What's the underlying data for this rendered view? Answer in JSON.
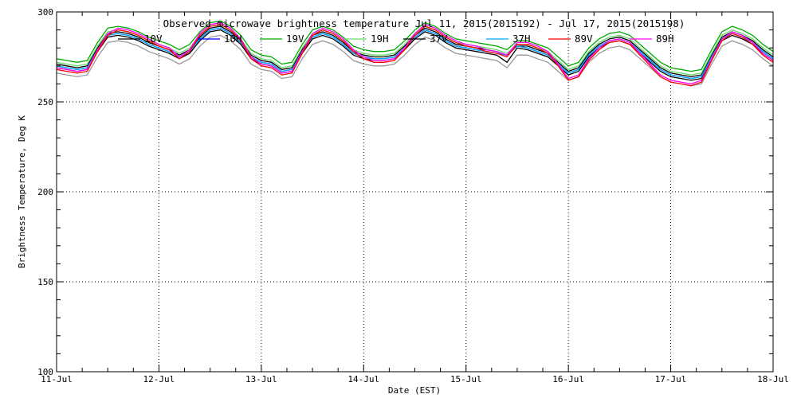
{
  "chart_data": {
    "type": "line",
    "title": "Observed microwave brightness temperature  Jul 11, 2015(2015192) - Jul 17, 2015(2015198)",
    "xlabel": "Date (EST)",
    "ylabel": "Brightness Temperature, Deg K",
    "x_tick_labels": [
      "11-Jul",
      "12-Jul",
      "13-Jul",
      "14-Jul",
      "15-Jul",
      "16-Jul",
      "17-Jul",
      "18-Jul"
    ],
    "y_ticks": [
      100,
      150,
      200,
      250,
      300
    ],
    "xlim": [
      0,
      7
    ],
    "ylim": [
      100,
      300
    ],
    "grid": true,
    "legend_position": "top",
    "x": [
      0.0,
      0.1,
      0.2,
      0.3,
      0.4,
      0.5,
      0.6,
      0.7,
      0.8,
      0.9,
      1.0,
      1.1,
      1.2,
      1.3,
      1.4,
      1.5,
      1.6,
      1.7,
      1.8,
      1.9,
      2.0,
      2.1,
      2.2,
      2.3,
      2.4,
      2.5,
      2.6,
      2.7,
      2.8,
      2.9,
      3.0,
      3.1,
      3.2,
      3.3,
      3.4,
      3.5,
      3.6,
      3.7,
      3.8,
      3.9,
      4.0,
      4.1,
      4.2,
      4.3,
      4.4,
      4.5,
      4.6,
      4.7,
      4.8,
      4.9,
      5.0,
      5.1,
      5.2,
      5.3,
      5.4,
      5.5,
      5.6,
      5.7,
      5.8,
      5.9,
      6.0,
      6.1,
      6.2,
      6.3,
      6.4,
      6.5,
      6.6,
      6.7,
      6.8,
      6.9,
      7.0
    ],
    "series": [
      {
        "name": "10V",
        "color": "#000000",
        "values": [
          271,
          270,
          269,
          270,
          280,
          288,
          289,
          288,
          286,
          283,
          281,
          279,
          276,
          279,
          286,
          291,
          292,
          289,
          284,
          276,
          273,
          272,
          268,
          269,
          279,
          287,
          289,
          287,
          283,
          278,
          276,
          275,
          275,
          276,
          281,
          287,
          291,
          289,
          285,
          282,
          281,
          280,
          279,
          278,
          276,
          281,
          281,
          279,
          277,
          272,
          267,
          269,
          277,
          282,
          285,
          286,
          284,
          279,
          274,
          269,
          266,
          265,
          264,
          265,
          276,
          286,
          289,
          287,
          284,
          279,
          275
        ]
      },
      {
        "name": "10H",
        "color": "#0000ff",
        "values": [
          270,
          269,
          268,
          269,
          279,
          287,
          288,
          287,
          285,
          282,
          280,
          278,
          275,
          278,
          285,
          290,
          291,
          288,
          283,
          275,
          272,
          271,
          267,
          268,
          278,
          286,
          288,
          286,
          282,
          277,
          275,
          274,
          274,
          275,
          280,
          286,
          290,
          288,
          284,
          281,
          280,
          279,
          278,
          277,
          276,
          281,
          280,
          278,
          276,
          271,
          266,
          268,
          276,
          281,
          284,
          285,
          283,
          278,
          273,
          268,
          265,
          264,
          263,
          264,
          275,
          285,
          288,
          286,
          283,
          278,
          274
        ]
      },
      {
        "name": "19V",
        "color": "#00aa00",
        "values": [
          274,
          273,
          272,
          273,
          283,
          291,
          292,
          291,
          289,
          286,
          284,
          282,
          279,
          282,
          289,
          294,
          295,
          292,
          287,
          279,
          276,
          275,
          271,
          272,
          282,
          290,
          292,
          290,
          286,
          281,
          279,
          278,
          278,
          279,
          284,
          290,
          294,
          292,
          288,
          285,
          284,
          283,
          282,
          281,
          279,
          284,
          284,
          282,
          280,
          275,
          270,
          272,
          280,
          285,
          288,
          289,
          287,
          282,
          277,
          272,
          269,
          268,
          267,
          268,
          279,
          289,
          292,
          290,
          287,
          282,
          278
        ]
      },
      {
        "name": "19H",
        "color": "#66dd66",
        "values": [
          272,
          271,
          270,
          271,
          281,
          289,
          290,
          289,
          287,
          284,
          282,
          280,
          277,
          280,
          287,
          292,
          293,
          290,
          285,
          277,
          274,
          273,
          269,
          270,
          280,
          288,
          290,
          288,
          284,
          279,
          277,
          276,
          276,
          277,
          282,
          288,
          292,
          290,
          286,
          283,
          282,
          281,
          280,
          279,
          277,
          282,
          282,
          280,
          278,
          273,
          268,
          270,
          278,
          283,
          286,
          287,
          285,
          280,
          275,
          270,
          267,
          266,
          265,
          266,
          277,
          287,
          290,
          288,
          285,
          280,
          276
        ]
      },
      {
        "name": "37V",
        "color": "#000000",
        "values": [
          269,
          268,
          267,
          268,
          278,
          286,
          287,
          286,
          284,
          281,
          279,
          277,
          274,
          277,
          284,
          289,
          290,
          287,
          282,
          274,
          271,
          270,
          266,
          267,
          277,
          285,
          287,
          285,
          281,
          276,
          274,
          273,
          273,
          274,
          279,
          285,
          289,
          287,
          283,
          280,
          279,
          278,
          277,
          276,
          272,
          280,
          279,
          277,
          275,
          270,
          265,
          267,
          275,
          280,
          283,
          284,
          282,
          277,
          272,
          267,
          264,
          263,
          262,
          263,
          274,
          284,
          287,
          285,
          282,
          277,
          273
        ]
      },
      {
        "name": "37H",
        "color": "#00aaff",
        "values": [
          270,
          269,
          268,
          269,
          279,
          287,
          288,
          287,
          285,
          282,
          280,
          278,
          275,
          278,
          285,
          290,
          291,
          288,
          283,
          275,
          272,
          271,
          267,
          268,
          278,
          286,
          288,
          286,
          282,
          277,
          275,
          274,
          274,
          275,
          280,
          286,
          290,
          288,
          284,
          281,
          280,
          279,
          278,
          277,
          276,
          281,
          280,
          278,
          276,
          271,
          266,
          268,
          276,
          281,
          284,
          285,
          283,
          278,
          273,
          268,
          265,
          264,
          263,
          264,
          275,
          285,
          288,
          286,
          283,
          278,
          274
        ]
      },
      {
        "name": "89V",
        "color": "#ff0000",
        "values": [
          268,
          267,
          266,
          267,
          278,
          287,
          290,
          289,
          287,
          284,
          281,
          279,
          274,
          278,
          287,
          292,
          293,
          290,
          284,
          274,
          270,
          269,
          265,
          266,
          277,
          287,
          290,
          288,
          284,
          278,
          274,
          272,
          272,
          273,
          279,
          287,
          292,
          290,
          286,
          283,
          281,
          280,
          278,
          277,
          275,
          282,
          282,
          280,
          277,
          270,
          262,
          264,
          273,
          279,
          283,
          284,
          282,
          276,
          270,
          264,
          261,
          260,
          259,
          261,
          273,
          284,
          288,
          286,
          282,
          276,
          272
        ]
      },
      {
        "name": "89H",
        "color": "#ff00ff",
        "values": [
          269,
          268,
          267,
          268,
          279,
          288,
          291,
          290,
          288,
          285,
          282,
          280,
          275,
          279,
          288,
          293,
          294,
          291,
          285,
          275,
          271,
          270,
          266,
          267,
          278,
          288,
          291,
          289,
          285,
          279,
          275,
          273,
          273,
          274,
          280,
          288,
          293,
          291,
          287,
          284,
          282,
          281,
          279,
          278,
          276,
          283,
          283,
          281,
          278,
          271,
          263,
          265,
          274,
          280,
          284,
          285,
          283,
          277,
          271,
          265,
          262,
          261,
          260,
          262,
          274,
          285,
          289,
          287,
          283,
          277,
          273
        ]
      },
      {
        "name": "",
        "color": "#999999",
        "values": [
          266,
          265,
          264,
          265,
          275,
          283,
          284,
          283,
          281,
          278,
          276,
          274,
          271,
          274,
          281,
          286,
          287,
          284,
          279,
          271,
          268,
          267,
          263,
          264,
          274,
          282,
          284,
          282,
          278,
          273,
          271,
          270,
          270,
          271,
          276,
          282,
          286,
          284,
          280,
          277,
          276,
          275,
          274,
          273,
          269,
          276,
          276,
          274,
          272,
          267,
          262,
          264,
          272,
          277,
          280,
          281,
          279,
          274,
          269,
          264,
          261,
          260,
          259,
          260,
          271,
          281,
          284,
          282,
          279,
          274,
          270
        ]
      }
    ]
  }
}
